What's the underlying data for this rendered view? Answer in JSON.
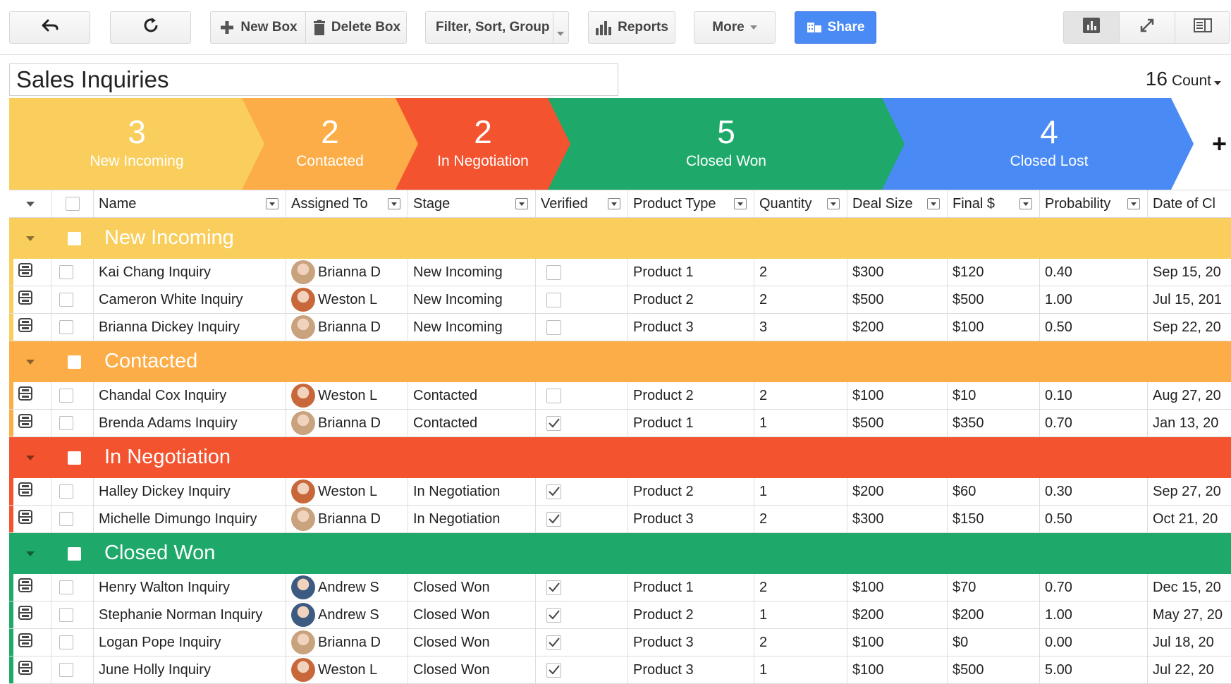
{
  "toolbar": {
    "new_box_label": "New Box",
    "delete_box_label": "Delete Box",
    "filter_label": "Filter, Sort, Group",
    "reports_label": "Reports",
    "more_label": "More",
    "share_label": "Share"
  },
  "box": {
    "title": "Sales Inquiries",
    "count_value": "16",
    "count_label": "Count"
  },
  "pipeline": [
    {
      "count": "3",
      "name": "New Incoming",
      "color": "#f9ce5c"
    },
    {
      "count": "2",
      "name": "Contacted",
      "color": "#fdad47"
    },
    {
      "count": "2",
      "name": "In Negotiation",
      "color": "#f4532f"
    },
    {
      "count": "5",
      "name": "Closed Won",
      "color": "#1ea96a"
    },
    {
      "count": "4",
      "name": "Closed Lost",
      "color": "#4a8af4"
    }
  ],
  "columns": [
    "Name",
    "Assigned To",
    "Stage",
    "Verified",
    "Product Type",
    "Quantity",
    "Deal Size",
    "Final $",
    "Probability",
    "Date of Cl"
  ],
  "groups": [
    {
      "title": "New Incoming",
      "color": "#f9ce5c",
      "rows": [
        {
          "name": "Kai Chang Inquiry",
          "assigned": "Brianna D",
          "stage": "New Incoming",
          "verified": false,
          "product": "Product 1",
          "qty": "2",
          "deal": "$300",
          "final": "$120",
          "prob": "0.40",
          "date": "Sep 15, 20"
        },
        {
          "name": "Cameron White Inquiry",
          "assigned": "Weston L",
          "stage": "New Incoming",
          "verified": false,
          "product": "Product 2",
          "qty": "2",
          "deal": "$500",
          "final": "$500",
          "prob": "1.00",
          "date": "Jul 15, 201"
        },
        {
          "name": "Brianna Dickey Inquiry",
          "assigned": "Brianna D",
          "stage": "New Incoming",
          "verified": false,
          "product": "Product 3",
          "qty": "3",
          "deal": "$200",
          "final": "$100",
          "prob": "0.50",
          "date": "Sep 22, 20"
        }
      ]
    },
    {
      "title": "Contacted",
      "color": "#fdad47",
      "rows": [
        {
          "name": "Chandal Cox Inquiry",
          "assigned": "Weston L",
          "stage": "Contacted",
          "verified": false,
          "product": "Product 2",
          "qty": "2",
          "deal": "$100",
          "final": "$10",
          "prob": "0.10",
          "date": "Aug 27, 20"
        },
        {
          "name": "Brenda Adams Inquiry",
          "assigned": "Brianna D",
          "stage": "Contacted",
          "verified": true,
          "product": "Product 1",
          "qty": "1",
          "deal": "$500",
          "final": "$350",
          "prob": "0.70",
          "date": "Jan 13, 20"
        }
      ]
    },
    {
      "title": "In Negotiation",
      "color": "#f4532f",
      "rows": [
        {
          "name": "Halley Dickey Inquiry",
          "assigned": "Weston L",
          "stage": "In Negotiation",
          "verified": true,
          "product": "Product 2",
          "qty": "1",
          "deal": "$200",
          "final": "$60",
          "prob": "0.30",
          "date": "Sep 27, 20"
        },
        {
          "name": "Michelle Dimungo Inquiry",
          "assigned": "Brianna D",
          "stage": "In Negotiation",
          "verified": true,
          "product": "Product 3",
          "qty": "2",
          "deal": "$300",
          "final": "$150",
          "prob": "0.50",
          "date": "Oct 21, 20"
        }
      ]
    },
    {
      "title": "Closed Won",
      "color": "#1ea96a",
      "rows": [
        {
          "name": "Henry Walton Inquiry",
          "assigned": "Andrew S",
          "stage": "Closed Won",
          "verified": true,
          "product": "Product 1",
          "qty": "2",
          "deal": "$100",
          "final": "$70",
          "prob": "0.70",
          "date": "Dec 15, 20"
        },
        {
          "name": "Stephanie Norman Inquiry",
          "assigned": "Andrew S",
          "stage": "Closed Won",
          "verified": true,
          "product": "Product 2",
          "qty": "1",
          "deal": "$200",
          "final": "$200",
          "prob": "1.00",
          "date": "May 27, 20"
        },
        {
          "name": "Logan Pope Inquiry",
          "assigned": "Brianna D",
          "stage": "Closed Won",
          "verified": true,
          "product": "Product 3",
          "qty": "2",
          "deal": "$100",
          "final": "$0",
          "prob": "0.00",
          "date": "Jul 18, 20"
        },
        {
          "name": "June Holly Inquiry",
          "assigned": "Weston L",
          "stage": "Closed Won",
          "verified": true,
          "product": "Product 3",
          "qty": "1",
          "deal": "$100",
          "final": "$500",
          "prob": "5.00",
          "date": "Jul 22, 20"
        }
      ]
    }
  ],
  "icons": {
    "back": "back-arrow-icon",
    "refresh": "refresh-icon",
    "plus": "plus-icon",
    "trash": "trash-icon",
    "reports": "bar-chart-icon",
    "share": "share-icon",
    "chart_view": "chart-view-icon",
    "expand": "fullscreen-icon",
    "sidebar": "sidebar-toggle-icon",
    "row_expand": "row-expand-icon"
  }
}
